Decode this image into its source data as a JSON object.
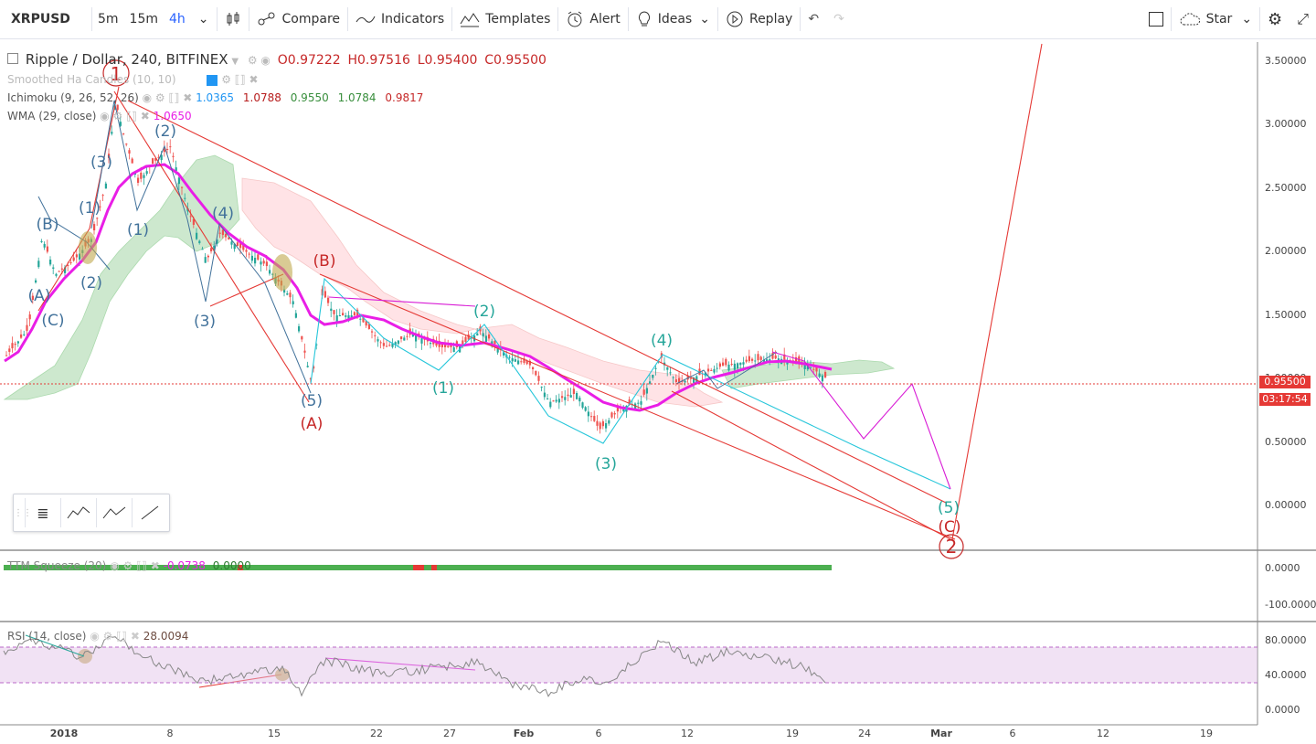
{
  "toolbar": {
    "symbol": "XRPUSD",
    "intervals": [
      "5m",
      "15m",
      "4h"
    ],
    "active_interval": "4h",
    "compare_label": "Compare",
    "indicators_label": "Indicators",
    "templates_label": "Templates",
    "alert_label": "Alert",
    "ideas_label": "Ideas",
    "replay_label": "Replay",
    "star_label": "Star"
  },
  "legend": {
    "title": "Ripple / Dollar, 240, BITFINEX",
    "open": "O0.97222",
    "high": "H0.97516",
    "low": "L0.95400",
    "close": "C0.95500",
    "ha_name": "Smoothed Ha Candles (10, 10)",
    "ichimoku_name": "Ichimoku (9, 26, 52, 26)",
    "ichimoku_values": [
      "1.0365",
      "1.0788",
      "0.9550",
      "1.0784",
      "0.9817"
    ],
    "wma_name": "WMA (29, close)",
    "wma_value": "1.0650"
  },
  "price_axis": {
    "labels": [
      "3.50000",
      "3.00000",
      "2.50000",
      "2.00000",
      "1.50000",
      "1.00000",
      "0.50000",
      "0.00000"
    ],
    "last_price": "0.95500",
    "countdown": "03:17:54"
  },
  "time_axis": {
    "labels": [
      "2018",
      "8",
      "15",
      "22",
      "27",
      "Feb",
      "6",
      "12",
      "19",
      "24",
      "Mar",
      "6",
      "12",
      "19"
    ]
  },
  "ttm": {
    "name": "TTM Squeeze (20)",
    "values": [
      "-0.0738",
      "0.0000"
    ],
    "axis": [
      "0.0000",
      "-100.0000"
    ]
  },
  "rsi": {
    "name": "RSI (14, close)",
    "value": "28.0094",
    "axis": [
      "80.0000",
      "40.0000",
      "0.0000"
    ]
  },
  "wave_labels": {
    "major": [
      "1",
      "2"
    ],
    "abc": [
      "(A)",
      "(B)",
      "(C)",
      "(A)",
      "(B)",
      "(C)"
    ],
    "cycle": [
      "(1)",
      "(2)",
      "(3)",
      "(4)",
      "(5)"
    ]
  },
  "colors": {
    "up": "#26a69a",
    "down": "#ef5350",
    "wma": "#e91ee6",
    "cloud_green": "#a5d6a7",
    "cloud_red": "#ffcdd2",
    "trend_red": "#e53935",
    "cyan": "#26c6da",
    "blue_wave": "#42729b"
  }
}
